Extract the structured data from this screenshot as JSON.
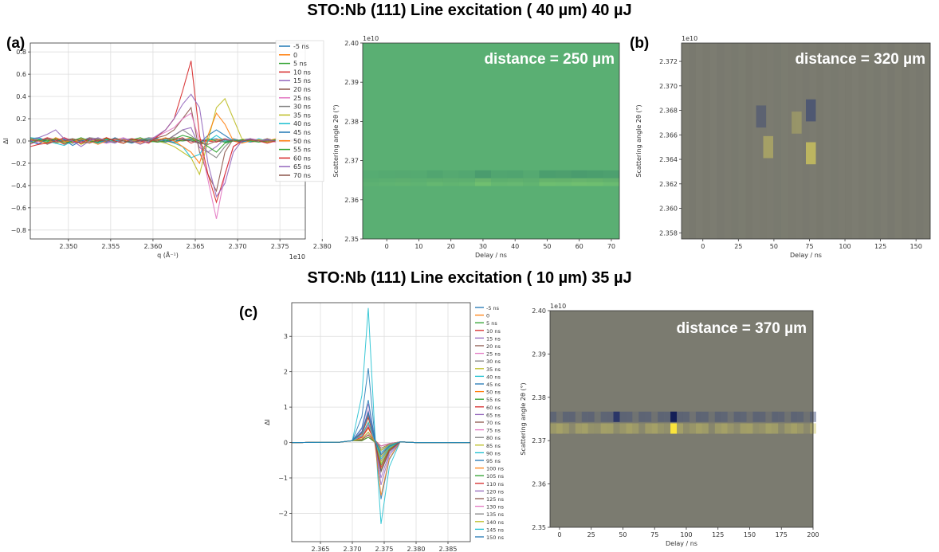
{
  "headings": {
    "top": "STO:Nb (111) Line excitation ( 40 µm) 40 µJ",
    "bottom": "STO:Nb (111) Line excitation ( 10 µm) 35 µJ"
  },
  "panel_labels": {
    "a": "(a)",
    "b": "(b)",
    "c": "(c)"
  },
  "colors": {
    "tab10": [
      "#1f77b4",
      "#ff7f0e",
      "#2ca02c",
      "#d62728",
      "#9467bd",
      "#8c564b",
      "#e377c2",
      "#7f7f7f",
      "#bcbd22",
      "#17becf"
    ],
    "heatmap_green_bg": "#5aaf73",
    "heatmap_grey_bg": "#7b7b70"
  },
  "chart_data": [
    {
      "id": "a_lines",
      "type": "line",
      "xlabel": "q (Å⁻¹)",
      "ylabel": "ΔI",
      "x_offset_label": "1e10",
      "xlim": [
        2.3455,
        2.378
      ],
      "ylim": [
        -0.88,
        0.88
      ],
      "xticks": [
        2.35,
        2.355,
        2.36,
        2.365,
        2.37,
        2.375,
        2.38
      ],
      "xtick_labels": [
        "2.350",
        "2.355",
        "2.360",
        "2.365",
        "2.370",
        "2.375",
        "2.380"
      ],
      "yticks": [
        -0.8,
        -0.6,
        -0.4,
        -0.2,
        0.0,
        0.2,
        0.4,
        0.6,
        0.8
      ],
      "ytick_labels": [
        "−0.8",
        "−0.6",
        "−0.4",
        "−0.2",
        "0.0",
        "0.2",
        "0.4",
        "0.6",
        "0.8"
      ],
      "grid": true,
      "legend": "right",
      "x": [
        2.3455,
        2.3465,
        2.3475,
        2.3485,
        2.3495,
        2.3505,
        2.3515,
        2.3525,
        2.3535,
        2.3545,
        2.3555,
        2.3565,
        2.3575,
        2.3585,
        2.3595,
        2.3605,
        2.3615,
        2.3625,
        2.3635,
        2.3645,
        2.3655,
        2.3665,
        2.3675,
        2.3685,
        2.3695,
        2.3705,
        2.3715,
        2.3725,
        2.3735,
        2.3745,
        2.3755,
        2.3765,
        2.3775
      ],
      "series": [
        {
          "name": "-5 ns",
          "values": [
            0.02,
            0.03,
            0.0,
            -0.02,
            0.01,
            0.02,
            0.0,
            0.01,
            -0.02,
            0.01,
            0.02,
            0.0,
            -0.01,
            0.01,
            0.02,
            0.0,
            -0.01,
            0.01,
            0.0,
            0.02,
            -0.02,
            0.01,
            0.02,
            -0.01,
            0.0,
            0.01,
            0.02,
            0.0,
            -0.01,
            0.01,
            0.0,
            0.01,
            0.0
          ]
        },
        {
          "name": "0",
          "values": [
            0.0,
            0.01,
            0.02,
            0.0,
            -0.01,
            0.01,
            0.02,
            -0.01,
            0.0,
            0.02,
            0.01,
            0.0,
            -0.01,
            0.02,
            0.0,
            0.01,
            0.0,
            -0.02,
            0.01,
            0.03,
            -0.02,
            0.0,
            0.01,
            0.02,
            0.0,
            -0.01,
            0.01,
            0.0,
            0.02,
            0.0,
            0.01,
            0.0,
            0.0
          ]
        },
        {
          "name": "5 ns",
          "values": [
            0.01,
            0.0,
            -0.01,
            0.02,
            0.0,
            -0.02,
            0.01,
            0.0,
            0.02,
            -0.01,
            0.0,
            0.01,
            0.02,
            0.0,
            -0.01,
            0.0,
            0.02,
            0.01,
            0.0,
            0.01,
            -0.01,
            0.02,
            0.0,
            -0.01,
            0.01,
            0.0,
            0.02,
            0.0,
            -0.01,
            0.0,
            0.01,
            0.0,
            0.01
          ]
        },
        {
          "name": "10 ns",
          "values": [
            -0.02,
            0.0,
            0.03,
            0.01,
            -0.03,
            0.0,
            0.02,
            0.0,
            -0.01,
            0.03,
            0.0,
            -0.02,
            0.01,
            0.0,
            0.02,
            -0.01,
            0.0,
            0.01,
            0.03,
            -0.02,
            0.01,
            0.0,
            -0.01,
            0.02,
            0.0,
            0.01,
            -0.01,
            0.0,
            0.02,
            0.0,
            -0.01,
            0.0,
            0.01
          ]
        },
        {
          "name": "15 ns",
          "values": [
            0.0,
            -0.02,
            0.01,
            0.0,
            0.02,
            -0.01,
            0.0,
            0.03,
            0.0,
            -0.02,
            0.0,
            0.01,
            0.02,
            0.0,
            -0.01,
            0.02,
            0.0,
            0.05,
            0.1,
            0.12,
            -0.06,
            -0.1,
            -0.05,
            0.02,
            0.0,
            -0.01,
            0.01,
            0.0,
            0.01,
            0.0,
            0.0,
            0.01,
            0.0
          ]
        },
        {
          "name": "20 ns",
          "values": [
            0.03,
            0.0,
            -0.02,
            0.02,
            0.0,
            0.01,
            -0.02,
            0.0,
            0.02,
            0.0,
            -0.01,
            0.0,
            0.02,
            0.01,
            0.0,
            0.03,
            0.05,
            0.1,
            0.2,
            0.3,
            -0.1,
            -0.3,
            -0.45,
            -0.1,
            0.02,
            0.0,
            0.01,
            0.0,
            -0.01,
            0.0,
            0.01,
            0.0,
            0.0
          ]
        },
        {
          "name": "25 ns",
          "values": [
            -0.03,
            0.0,
            0.02,
            -0.02,
            0.03,
            0.0,
            -0.01,
            0.02,
            0.0,
            -0.02,
            0.01,
            0.03,
            0.0,
            -0.01,
            0.02,
            0.04,
            0.08,
            0.12,
            0.2,
            0.25,
            0.0,
            -0.35,
            -0.7,
            -0.3,
            -0.05,
            0.0,
            0.02,
            0.01,
            0.0,
            -0.01,
            0.0,
            0.0,
            0.01
          ]
        },
        {
          "name": "30 ns",
          "values": [
            0.0,
            0.02,
            -0.03,
            0.0,
            0.02,
            -0.02,
            0.0,
            0.03,
            0.02,
            0.0,
            -0.01,
            0.02,
            0.0,
            0.01,
            0.03,
            0.02,
            0.0,
            0.05,
            0.1,
            0.05,
            -0.02,
            -0.1,
            -0.15,
            -0.05,
            0.02,
            0.0,
            0.01,
            0.0,
            0.02,
            0.0,
            -0.01,
            0.0,
            0.0
          ]
        },
        {
          "name": "35 ns",
          "values": [
            0.02,
            0.0,
            0.01,
            -0.02,
            0.0,
            0.02,
            -0.03,
            0.0,
            0.01,
            0.02,
            0.0,
            -0.02,
            0.01,
            0.0,
            0.02,
            0.0,
            -0.02,
            -0.05,
            -0.1,
            -0.15,
            -0.3,
            0.0,
            0.3,
            0.38,
            0.2,
            0.02,
            0.0,
            0.01,
            -0.01,
            0.0,
            0.01,
            0.0,
            0.0
          ]
        },
        {
          "name": "40 ns",
          "values": [
            0.03,
            0.02,
            0.0,
            -0.02,
            -0.04,
            0.0,
            0.02,
            0.0,
            -0.02,
            0.01,
            0.0,
            0.02,
            -0.01,
            0.0,
            0.02,
            0.0,
            0.01,
            -0.02,
            -0.05,
            -0.15,
            -0.12,
            0.0,
            0.05,
            0.0,
            0.01,
            0.0,
            -0.01,
            0.02,
            0.0,
            0.01,
            0.0,
            0.0,
            0.0
          ]
        },
        {
          "name": "45 ns",
          "values": [
            0.0,
            -0.03,
            0.02,
            0.0,
            0.01,
            -0.04,
            0.0,
            0.02,
            0.0,
            -0.01,
            0.03,
            0.0,
            -0.02,
            0.01,
            0.0,
            0.02,
            0.0,
            -0.01,
            0.02,
            0.0,
            -0.02,
            0.05,
            0.1,
            0.05,
            0.0,
            -0.01,
            0.02,
            0.0,
            0.01,
            0.0,
            -0.01,
            0.0,
            0.0
          ]
        },
        {
          "name": "50 ns",
          "values": [
            0.01,
            0.0,
            -0.02,
            0.03,
            0.0,
            -0.01,
            0.02,
            0.0,
            -0.03,
            0.0,
            0.02,
            0.01,
            0.0,
            -0.02,
            0.0,
            0.01,
            0.03,
            0.0,
            -0.05,
            -0.1,
            -0.2,
            0.05,
            0.25,
            0.15,
            0.0,
            -0.02,
            0.0,
            0.01,
            0.0,
            0.02,
            0.0,
            0.0,
            0.0
          ]
        },
        {
          "name": "55 ns",
          "values": [
            -0.02,
            0.01,
            0.0,
            0.02,
            -0.02,
            0.0,
            0.03,
            0.0,
            -0.01,
            0.02,
            0.0,
            -0.02,
            0.01,
            0.03,
            0.0,
            -0.01,
            0.0,
            0.02,
            0.05,
            0.03,
            0.0,
            -0.05,
            -0.1,
            -0.02,
            0.0,
            0.01,
            0.0,
            -0.01,
            0.0,
            0.01,
            0.0,
            0.0,
            0.0
          ]
        },
        {
          "name": "60 ns",
          "values": [
            -0.05,
            -0.03,
            -0.02,
            0.0,
            0.03,
            0.0,
            -0.02,
            0.02,
            0.0,
            0.03,
            0.0,
            -0.02,
            0.02,
            0.0,
            -0.02,
            0.04,
            0.1,
            0.2,
            0.45,
            0.72,
            0.05,
            -0.3,
            -0.55,
            -0.3,
            -0.05,
            0.0,
            0.02,
            0.0,
            -0.02,
            0.0,
            0.01,
            0.0,
            0.0
          ]
        },
        {
          "name": "65 ns",
          "values": [
            0.0,
            0.03,
            0.06,
            0.1,
            0.02,
            0.0,
            -0.05,
            0.0,
            0.03,
            0.0,
            -0.02,
            0.02,
            0.0,
            -0.03,
            0.0,
            0.05,
            0.1,
            0.2,
            0.33,
            0.42,
            0.3,
            -0.2,
            -0.5,
            -0.38,
            -0.1,
            0.0,
            0.02,
            0.0,
            0.01,
            0.0,
            -0.01,
            0.0,
            0.0
          ]
        },
        {
          "name": "70 ns",
          "values": [
            0.01,
            0.0,
            0.02,
            -0.01,
            0.0,
            0.02,
            0.0,
            -0.02,
            0.01,
            0.0,
            0.02,
            0.0,
            -0.01,
            0.0,
            0.01,
            0.0,
            0.02,
            0.03,
            0.01,
            0.0,
            -0.02,
            -0.03,
            0.0,
            0.01,
            0.0,
            0.0,
            0.01,
            0.0,
            0.0,
            0.0,
            0.0,
            0.0,
            0.0
          ]
        }
      ]
    },
    {
      "id": "a_heatmap",
      "type": "heatmap",
      "xlabel": "Delay / ns",
      "ylabel": "Scattering angle 2θ (°)",
      "y_offset_label": "1e10",
      "xlim": [
        -7.5,
        72.5
      ],
      "ylim": [
        2.35,
        2.4
      ],
      "xticks": [
        0,
        10,
        20,
        30,
        40,
        50,
        60,
        70
      ],
      "xtick_labels": [
        "0",
        "10",
        "20",
        "30",
        "40",
        "50",
        "60",
        "70"
      ],
      "yticks": [
        2.35,
        2.36,
        2.37,
        2.38,
        2.39,
        2.4
      ],
      "ytick_labels": [
        "2.35",
        "2.36",
        "2.37",
        "2.38",
        "2.39",
        "2.40"
      ],
      "annotation": "distance = 250 µm",
      "band_center": 2.366,
      "delays": [
        -5,
        0,
        5,
        10,
        15,
        20,
        25,
        30,
        35,
        40,
        45,
        50,
        55,
        60,
        65,
        70
      ],
      "band_intensity": [
        0.1,
        0.15,
        0.2,
        0.15,
        0.3,
        0.2,
        0.25,
        0.6,
        0.3,
        0.35,
        0.2,
        0.55,
        0.5,
        0.6,
        0.55,
        0.45
      ]
    },
    {
      "id": "b_heatmap",
      "type": "heatmap",
      "xlabel": "Delay / ns",
      "ylabel": "Scattering angle 2θ (°)",
      "y_offset_label": "1e10",
      "xlim": [
        -15,
        160
      ],
      "ylim": [
        2.3575,
        2.3735
      ],
      "xticks": [
        0,
        25,
        50,
        75,
        100,
        125,
        150
      ],
      "xtick_labels": [
        "0",
        "25",
        "50",
        "75",
        "100",
        "125",
        "150"
      ],
      "yticks": [
        2.358,
        2.36,
        2.362,
        2.364,
        2.366,
        2.368,
        2.37,
        2.372
      ],
      "ytick_labels": [
        "2.358",
        "2.360",
        "2.362",
        "2.364",
        "2.366",
        "2.368",
        "2.370",
        "2.372"
      ],
      "annotation": "distance = 320 µm",
      "features": [
        {
          "delay": 40,
          "center": 2.3675,
          "sign": -1,
          "strength": 0.5
        },
        {
          "delay": 45,
          "center": 2.365,
          "sign": 1,
          "strength": 0.45
        },
        {
          "delay": 75,
          "center": 2.368,
          "sign": -1,
          "strength": 0.7
        },
        {
          "delay": 75,
          "center": 2.3645,
          "sign": 1,
          "strength": 0.7
        },
        {
          "delay": 65,
          "center": 2.367,
          "sign": 1,
          "strength": 0.3
        }
      ]
    },
    {
      "id": "c_lines",
      "type": "line",
      "xlabel": "q (Å⁻¹)",
      "ylabel": "ΔI",
      "xlim": [
        2.3605,
        2.3885
      ],
      "ylim": [
        -2.8,
        3.95
      ],
      "xticks": [
        2.365,
        2.37,
        2.375,
        2.38,
        2.385
      ],
      "xtick_labels": [
        "2.365",
        "2.370",
        "2.375",
        "2.380",
        "2.385"
      ],
      "yticks": [
        -2,
        -1,
        0,
        1,
        2,
        3
      ],
      "ytick_labels": [
        "−2",
        "−1",
        "0",
        "1",
        "2",
        "3"
      ],
      "grid": true,
      "legend": "right",
      "legend_entries": [
        "-5 ns",
        "0",
        "5 ns",
        "10 ns",
        "15 ns",
        "20 ns",
        "25 ns",
        "30 ns",
        "35 ns",
        "40 ns",
        "45 ns",
        "50 ns",
        "55 ns",
        "60 ns",
        "65 ns",
        "70 ns",
        "75 ns",
        "80 ns",
        "85 ns",
        "90 ns",
        "95 ns",
        "100 ns",
        "105 ns",
        "110 ns",
        "120 ns",
        "125 ns",
        "130 ns",
        "135 ns",
        "140 ns",
        "145 ns",
        "150 ns"
      ],
      "peak_q": 2.3725,
      "dip_q": 2.3745,
      "highlight_series": [
        {
          "name": "40 ns",
          "peak": 3.8,
          "dip": -2.3
        },
        {
          "name": "45 ns",
          "peak": 2.1,
          "dip": -1.6
        },
        {
          "name": "95 ns",
          "peak": 1.2,
          "dip": -0.8
        },
        {
          "name": "100 ns",
          "peak": 0.4,
          "dip": -1.5
        },
        {
          "name": "120 ns",
          "peak": 0.9,
          "dip": -1.2
        },
        {
          "name": "65 ns",
          "peak": 1.1,
          "dip": -1.0
        }
      ]
    },
    {
      "id": "c_heatmap",
      "type": "heatmap",
      "xlabel": "Delay / ns",
      "ylabel": "Scattering angle 2θ (°)",
      "y_offset_label": "1e10",
      "xlim": [
        -7.5,
        200
      ],
      "ylim": [
        2.35,
        2.4
      ],
      "xticks": [
        0,
        25,
        50,
        75,
        100,
        125,
        150,
        175,
        200
      ],
      "xtick_labels": [
        "0",
        "25",
        "50",
        "75",
        "100",
        "125",
        "150",
        "175",
        "200"
      ],
      "yticks": [
        2.35,
        2.36,
        2.37,
        2.38,
        2.39,
        2.4
      ],
      "ytick_labels": [
        "2.35",
        "2.36",
        "2.37",
        "2.38",
        "2.39",
        "2.40"
      ],
      "annotation": "distance = 370 µm",
      "band_upper": 2.3755,
      "band_lower": 2.3728
    }
  ]
}
